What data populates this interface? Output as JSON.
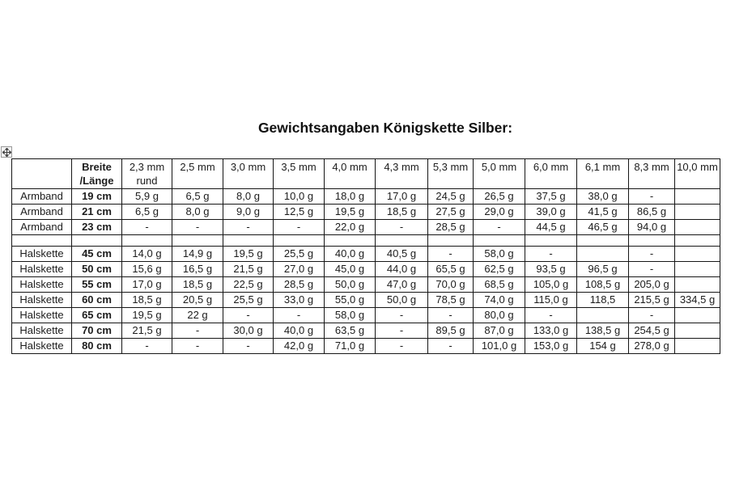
{
  "title": "Gewichtsangaben Königskette Silber:",
  "icons": {
    "table_move_handle": "move-icon"
  },
  "table": {
    "header_cells": [
      "",
      "Breite\n/Länge",
      "2,3 mm\nrund",
      "2,5 mm",
      "3,0 mm",
      "3,5 mm",
      "4,0 mm",
      "4,3 mm",
      "5,3 mm",
      "5,0 mm",
      "6,0 mm",
      "6,1 mm",
      "8,3 mm",
      "10,0 mm"
    ],
    "rows": [
      {
        "cells": [
          "Armband",
          "19 cm",
          "5,9 g",
          "6,5 g",
          "8,0 g",
          "10,0 g",
          "18,0 g",
          "17,0 g",
          "24,5 g",
          "26,5 g",
          "37,5 g",
          "38,0 g",
          "-",
          ""
        ]
      },
      {
        "cells": [
          "Armband",
          "21 cm",
          "6,5 g",
          "8,0 g",
          "9,0 g",
          "12,5 g",
          "19,5 g",
          "18,5 g",
          "27,5 g",
          "29,0 g",
          "39,0 g",
          "41,5 g",
          "86,5 g",
          ""
        ]
      },
      {
        "cells": [
          "Armband",
          "23 cm",
          "-",
          "-",
          "-",
          "-",
          "22,0 g",
          "-",
          "28,5 g",
          "-",
          "44,5 g",
          "46,5 g",
          "94,0 g",
          ""
        ]
      },
      {
        "cells": [
          "",
          "",
          "",
          "",
          "",
          "",
          "",
          "",
          "",
          "",
          "",
          "",
          "",
          ""
        ]
      },
      {
        "cells": [
          "Halskette",
          "45 cm",
          "14,0 g",
          "14,9 g",
          "19,5 g",
          "25,5 g",
          "40,0 g",
          "40,5 g",
          "-",
          "58,0 g",
          "-",
          "",
          "-",
          ""
        ]
      },
      {
        "cells": [
          "Halskette",
          "50 cm",
          "15,6 g",
          "16,5 g",
          "21,5 g",
          "27,0 g",
          "45,0 g",
          "44,0 g",
          "65,5 g",
          "62,5 g",
          "93,5 g",
          "96,5 g",
          "-",
          ""
        ]
      },
      {
        "cells": [
          "Halskette",
          "55 cm",
          "17,0 g",
          "18,5 g",
          "22,5 g",
          "28,5 g",
          "50,0 g",
          "47,0 g",
          "70,0 g",
          "68,5 g",
          "105,0 g",
          "108,5 g",
          "205,0 g",
          ""
        ]
      },
      {
        "cells": [
          "Halskette",
          "60 cm",
          "18,5 g",
          "20,5 g",
          "25,5 g",
          "33,0 g",
          "55,0 g",
          "50,0 g",
          "78,5 g",
          "74,0 g",
          "115,0 g",
          "118,5",
          "215,5 g",
          "334,5 g"
        ]
      },
      {
        "cells": [
          "Halskette",
          "65 cm",
          "19,5 g",
          "22 g",
          "-",
          "-",
          "58,0 g",
          "-",
          "-",
          "80,0 g",
          "-",
          "",
          "-",
          ""
        ]
      },
      {
        "cells": [
          "Halskette",
          "70 cm",
          "21,5 g",
          "-",
          "30,0 g",
          "40,0 g",
          "63,5 g",
          "-",
          "89,5 g",
          "87,0 g",
          "133,0 g",
          "138,5 g",
          "254,5 g",
          ""
        ]
      },
      {
        "cells": [
          "Halskette",
          "80 cm",
          "-",
          "-",
          "-",
          "42,0 g",
          "71,0 g",
          "-",
          "-",
          "101,0 g",
          "153,0 g",
          "154 g",
          "278,0 g",
          ""
        ]
      }
    ]
  }
}
